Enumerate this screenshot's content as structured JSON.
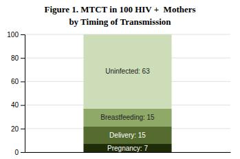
{
  "chart_data": {
    "type": "bar",
    "stacked": true,
    "title": "Figure 1. MTCT in 100 HIV +  Mothers",
    "subtitle": "by Timing of Transmission",
    "categories": [
      null
    ],
    "series": [
      {
        "color": "#1e2d08",
        "values": [
          7
        ],
        "value_labels": [
          "Pregnancy: 7"
        ]
      },
      {
        "color": "#556b2f",
        "values": [
          15
        ],
        "value_labels": [
          "Delivery: 15"
        ]
      },
      {
        "color": "#8faa68",
        "values": [
          15
        ],
        "value_labels": [
          "Breastfeeding: 15"
        ]
      },
      {
        "color": "#cdddb8",
        "values": [
          63
        ],
        "value_labels": [
          "Uninfected: 63"
        ]
      }
    ],
    "ylim": [
      0,
      100
    ],
    "yticks": [
      0,
      20,
      40,
      60,
      80,
      100
    ],
    "grid": true,
    "data_labels": true,
    "tick_labels": "y"
  }
}
